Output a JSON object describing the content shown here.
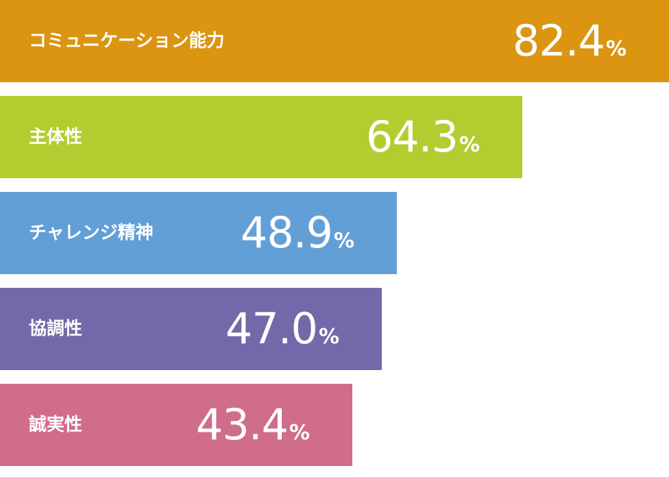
{
  "chart_data": {
    "type": "bar",
    "orientation": "horizontal",
    "unit": "%",
    "categories": [
      "コミュニケーション能力",
      "主体性",
      "チャレンジ精神",
      "協調性",
      "誠実性"
    ],
    "values": [
      82.4,
      64.3,
      48.9,
      47.0,
      43.4
    ],
    "value_labels": [
      "82.4",
      "64.3",
      "48.9",
      "47.0",
      "43.4"
    ],
    "colors": [
      "#db9511",
      "#b5cc30",
      "#639fd7",
      "#7369aa",
      "#d06d8b"
    ],
    "title": "",
    "xlabel": "",
    "ylabel": "",
    "grid": false
  }
}
